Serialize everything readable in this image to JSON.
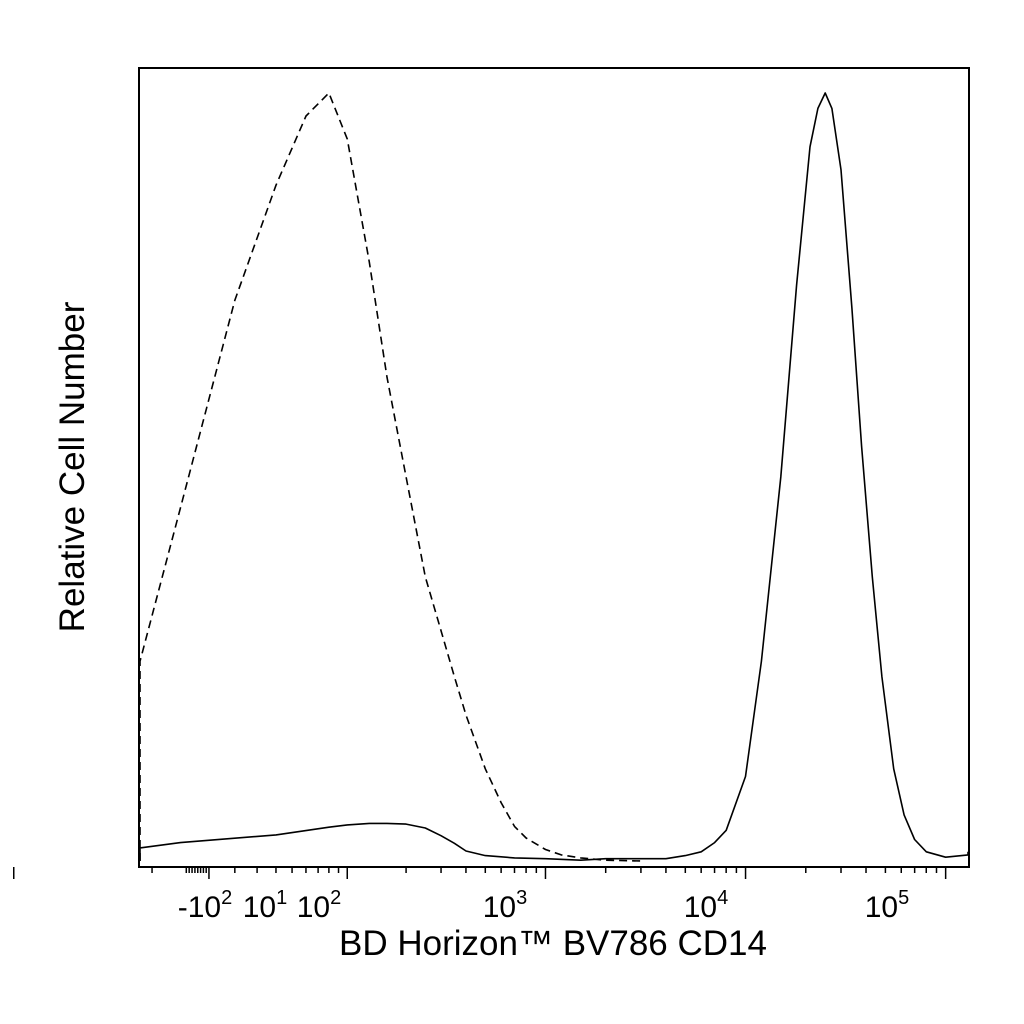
{
  "chart_data": {
    "type": "line",
    "title": "",
    "xlabel": "BD Horizon™ BV786 CD14",
    "ylabel": "Relative Cell Number",
    "x_scale": "biexponential",
    "xlim": [
      -400,
      250000
    ],
    "ylim": [
      0,
      1
    ],
    "grid": false,
    "legend": "none",
    "x_ticks": [
      {
        "value": -100,
        "base": "-10",
        "exp": "2"
      },
      {
        "value": 10,
        "base": "10",
        "exp": "1"
      },
      {
        "value": 100,
        "base": "10",
        "exp": "2"
      },
      {
        "value": 1000,
        "base": "10",
        "exp": "3"
      },
      {
        "value": 10000,
        "base": "10",
        "exp": "4"
      },
      {
        "value": 100000,
        "base": "10",
        "exp": "5"
      }
    ],
    "series": [
      {
        "style": "dashed",
        "x": [
          -400,
          -250,
          -150,
          -100,
          -50,
          0,
          20,
          40,
          60,
          80,
          100,
          130,
          160,
          200,
          250,
          300,
          350,
          400,
          500,
          600,
          700,
          800,
          1000,
          1200,
          1500,
          2000,
          3000
        ],
        "y": [
          0.0,
          0.003,
          0.012,
          0.05,
          0.26,
          0.46,
          0.73,
          0.88,
          0.97,
          1.0,
          0.94,
          0.78,
          0.63,
          0.5,
          0.37,
          0.3,
          0.24,
          0.19,
          0.12,
          0.076,
          0.045,
          0.03,
          0.015,
          0.008,
          0.004,
          0.001,
          0.0
        ]
      },
      {
        "style": "solid",
        "x": [
          -400,
          -250,
          -150,
          -100,
          -50,
          0,
          40,
          80,
          100,
          130,
          160,
          200,
          250,
          300,
          350,
          400,
          500,
          700,
          1000,
          1500,
          2000,
          3000,
          4000,
          5000,
          6000,
          7000,
          8000,
          10000,
          12000,
          15000,
          18000,
          21000,
          23000,
          25000,
          27000,
          30000,
          34000,
          38000,
          43000,
          48000,
          55000,
          62000,
          70000,
          80000,
          100000,
          150000,
          250000
        ],
        "y": [
          0.0,
          0.001,
          0.004,
          0.008,
          0.017,
          0.024,
          0.034,
          0.044,
          0.047,
          0.049,
          0.049,
          0.048,
          0.043,
          0.033,
          0.023,
          0.013,
          0.007,
          0.004,
          0.003,
          0.001,
          0.003,
          0.003,
          0.003,
          0.007,
          0.012,
          0.024,
          0.04,
          0.11,
          0.26,
          0.5,
          0.75,
          0.93,
          0.98,
          1.0,
          0.98,
          0.9,
          0.72,
          0.54,
          0.37,
          0.24,
          0.12,
          0.06,
          0.028,
          0.012,
          0.005,
          0.008,
          0.012
        ]
      }
    ]
  }
}
